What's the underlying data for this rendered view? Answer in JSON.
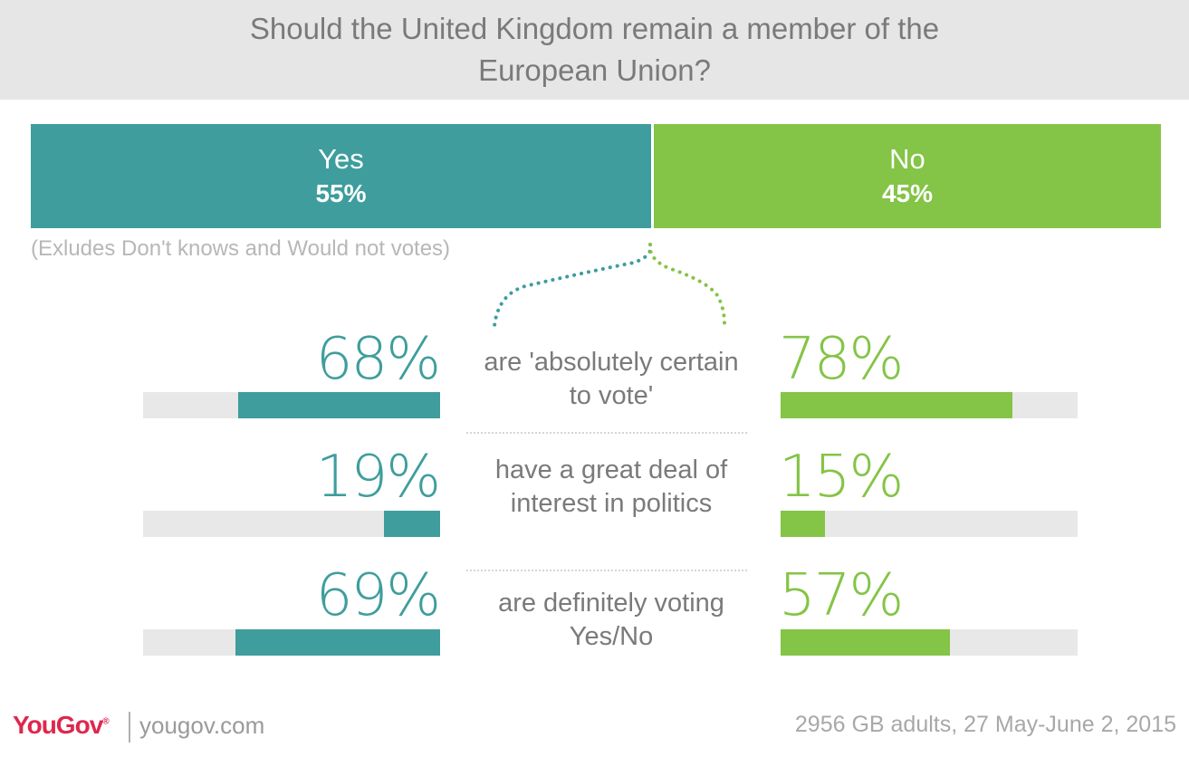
{
  "title": "Should the United Kingdom remain a member of the European Union?",
  "note": "(Exludes Don't knows and Would not votes)",
  "footer": {
    "logo": "YouGov",
    "logo_mark": "®",
    "site": "yougov.com",
    "source": "2956 GB adults, 27 May-June 2, 2015"
  },
  "colors": {
    "yes": "#3f9d9d",
    "no": "#84c446",
    "track": "#e8e8e8",
    "header_bg": "#e6e6e6",
    "logo": "#e0264d"
  },
  "chart_data": [
    {
      "type": "bar",
      "title": "Should the United Kingdom remain a member of the European Union?",
      "categories": [
        "Yes",
        "No"
      ],
      "values": [
        55,
        45
      ],
      "value_labels": [
        "55%",
        "45%"
      ],
      "orientation": "horizontal-stacked",
      "ylim": [
        0,
        100
      ]
    },
    {
      "type": "bar",
      "categories": [
        "are 'absolutely certain to vote'",
        "have a great deal of interest in politics",
        "are definitely voting Yes/No"
      ],
      "series": [
        {
          "name": "Yes",
          "values": [
            68,
            19,
            69
          ],
          "value_labels": [
            "68%",
            "19%",
            "69%"
          ]
        },
        {
          "name": "No",
          "values": [
            78,
            15,
            57
          ],
          "value_labels": [
            "78%",
            "15%",
            "57%"
          ]
        }
      ],
      "ylim": [
        0,
        100
      ]
    }
  ]
}
